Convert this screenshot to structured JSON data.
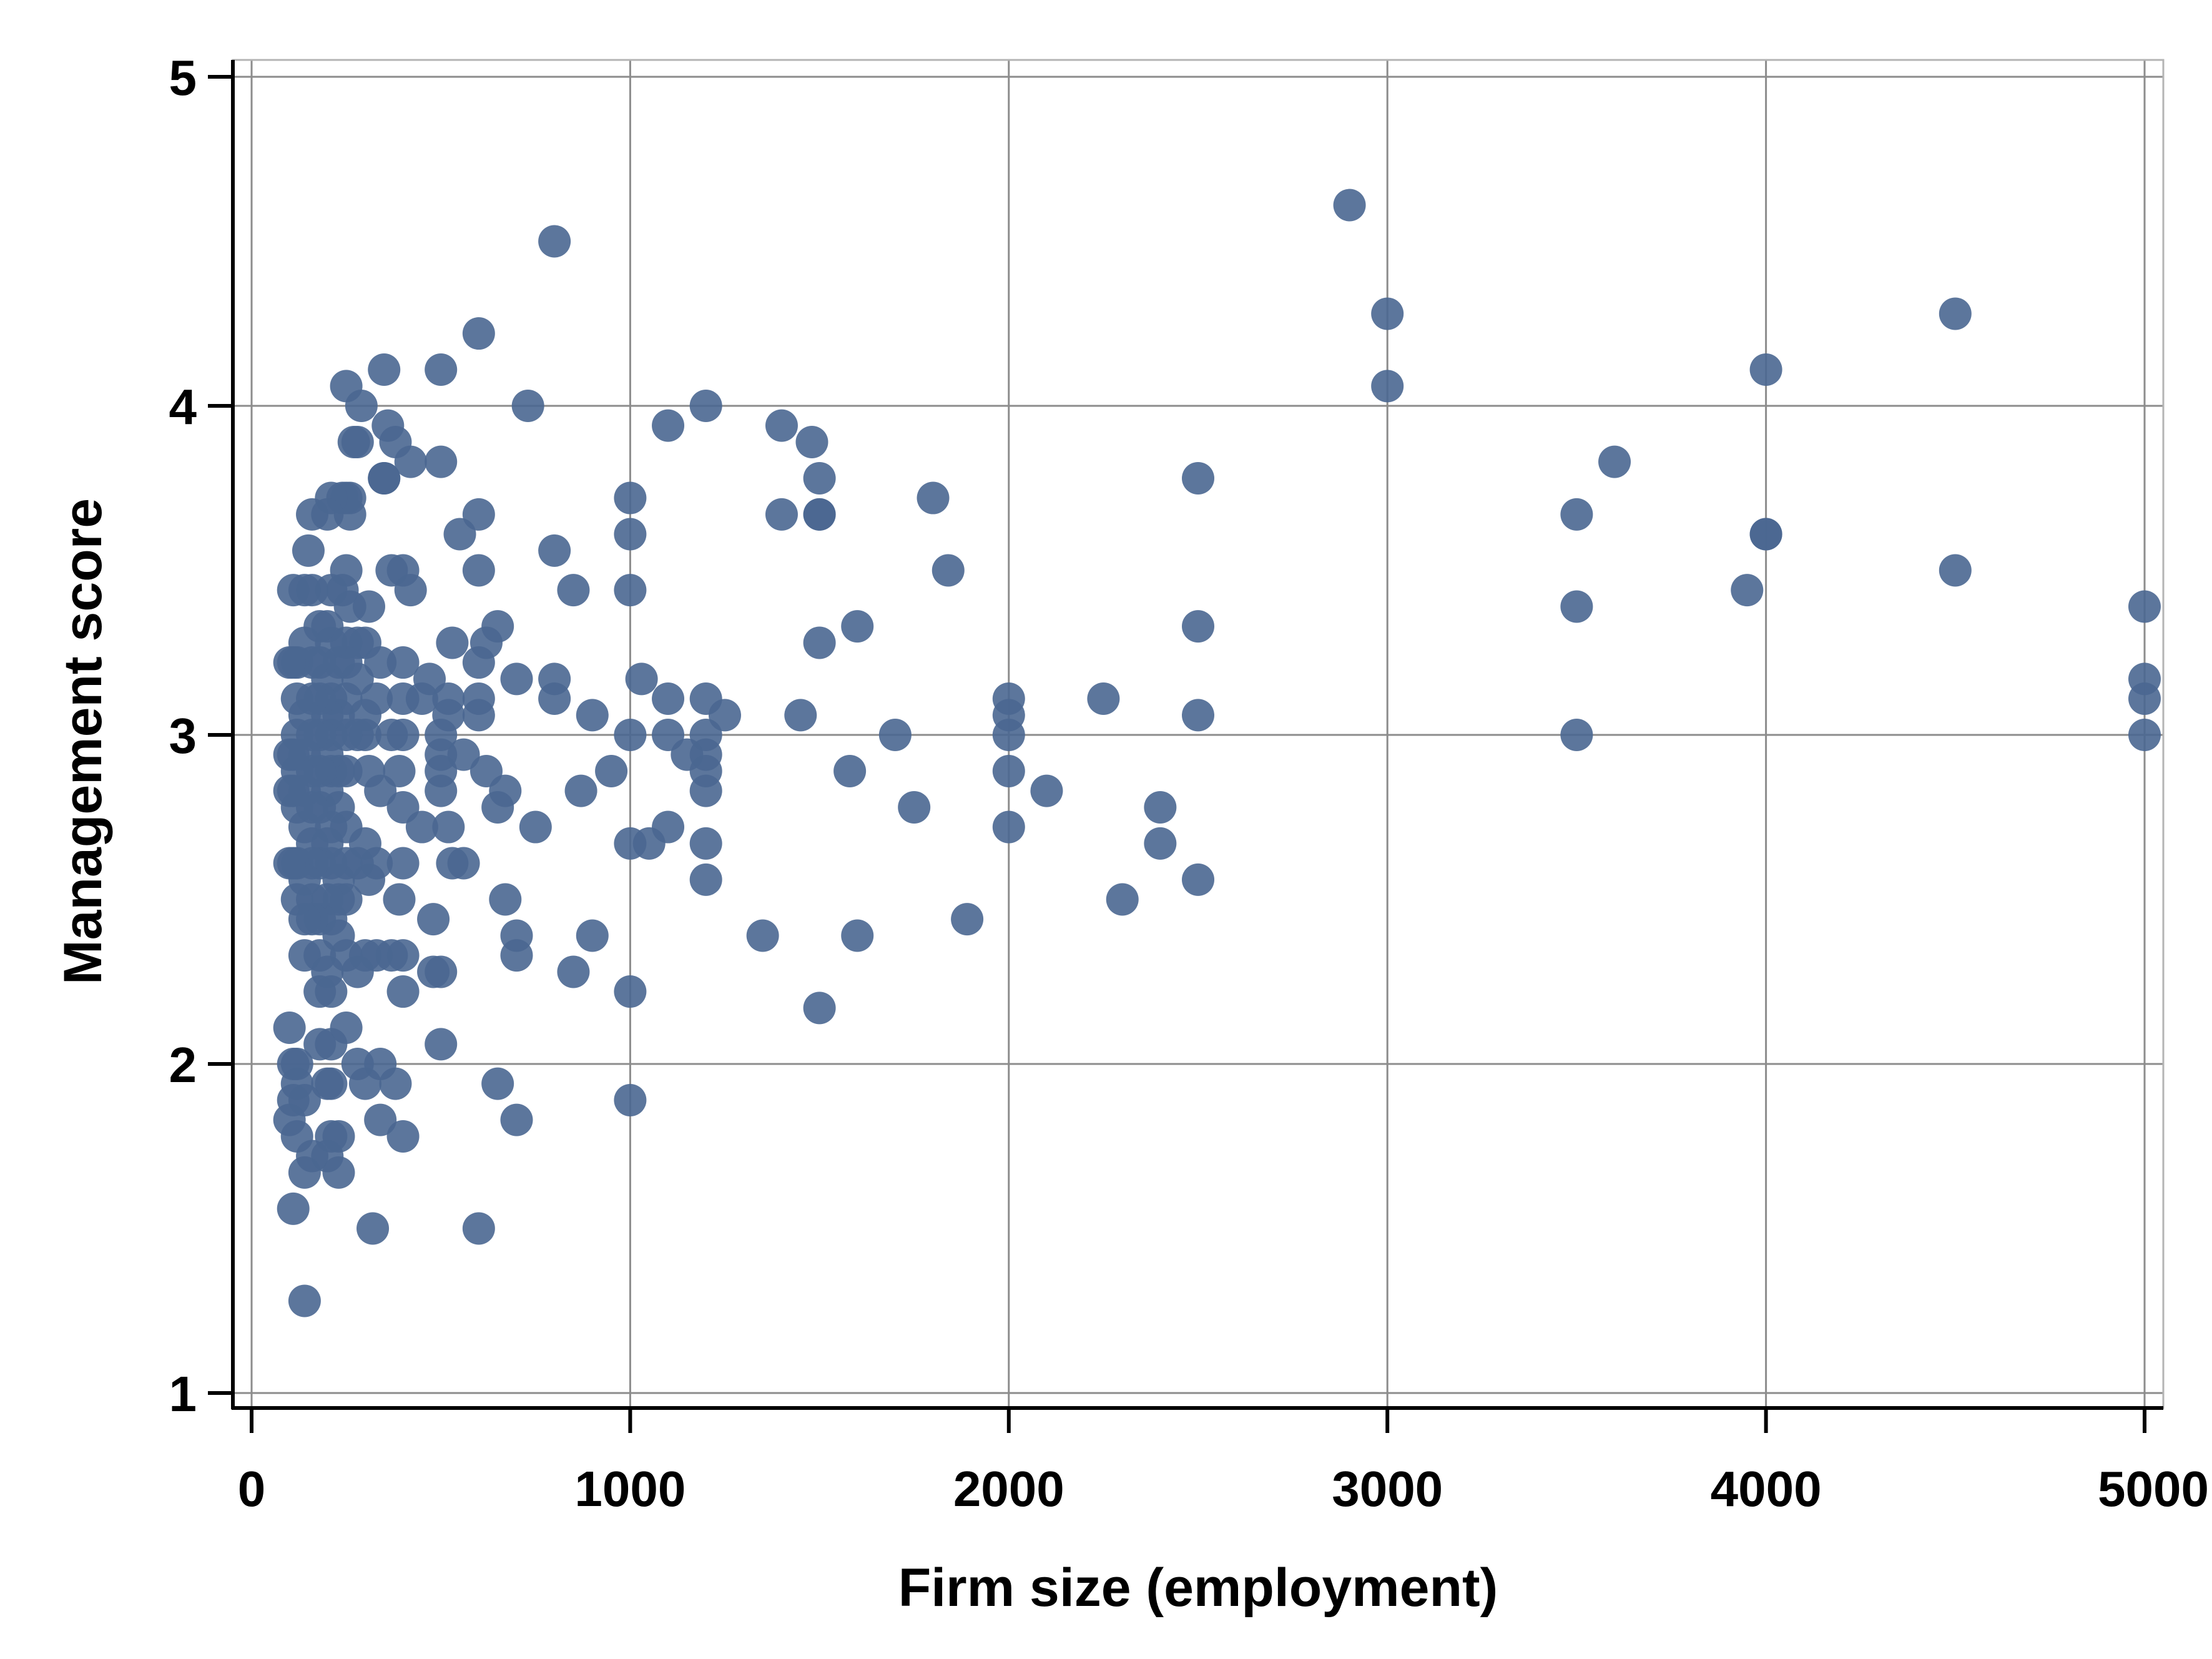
{
  "chart_data": {
    "type": "scatter",
    "title": "",
    "xlabel": "Firm size (employment)",
    "ylabel": "Management score",
    "xlim": [
      0,
      5000
    ],
    "ylim": [
      1,
      5
    ],
    "xticks": [
      0,
      1000,
      2000,
      3000,
      4000,
      5000
    ],
    "yticks": [
      1,
      2,
      3,
      4,
      5
    ],
    "xtick_labels": [
      "0",
      "1000",
      "2000",
      "3000",
      "4000",
      "5000"
    ],
    "ytick_labels": [
      "1",
      "2",
      "3",
      "4",
      "5"
    ],
    "grid": true,
    "legend": "none",
    "colors": {
      "point": "#4a6791",
      "grid": "#8c8c8c",
      "axis": "#000000",
      "frame": "#b4b4b4"
    },
    "series": [
      {
        "points": [
          [
            2900,
            4.61
          ],
          [
            3000,
            4.28
          ],
          [
            3000,
            4.06
          ],
          [
            4500,
            4.28
          ],
          [
            4000,
            4.11
          ],
          [
            3600,
            3.83
          ],
          [
            3500,
            3.67
          ],
          [
            4000,
            3.61
          ],
          [
            4000,
            3.61
          ],
          [
            3950,
            3.44
          ],
          [
            4500,
            3.5
          ],
          [
            3500,
            3.39
          ],
          [
            3500,
            3.0
          ],
          [
            5000,
            3.39
          ],
          [
            5000,
            3.17
          ],
          [
            5000,
            3.11
          ],
          [
            5000,
            3.0
          ],
          [
            2500,
            3.78
          ],
          [
            2500,
            3.33
          ],
          [
            2500,
            3.06
          ],
          [
            2500,
            2.56
          ],
          [
            2250,
            3.11
          ],
          [
            2100,
            2.83
          ],
          [
            2300,
            2.5
          ],
          [
            2400,
            2.78
          ],
          [
            2400,
            2.67
          ],
          [
            2000,
            3.11
          ],
          [
            2000,
            3.06
          ],
          [
            2000,
            3.0
          ],
          [
            2000,
            2.89
          ],
          [
            2000,
            2.72
          ],
          [
            1800,
            3.72
          ],
          [
            1840,
            3.5
          ],
          [
            1890,
            2.44
          ],
          [
            1750,
            2.78
          ],
          [
            1700,
            3.0
          ],
          [
            1600,
            3.33
          ],
          [
            1580,
            2.89
          ],
          [
            1600,
            2.39
          ],
          [
            1500,
            3.28
          ],
          [
            1500,
            3.67
          ],
          [
            1500,
            3.67
          ],
          [
            1500,
            3.78
          ],
          [
            1480,
            3.89
          ],
          [
            1400,
            3.94
          ],
          [
            1400,
            3.67
          ],
          [
            1450,
            3.06
          ],
          [
            1350,
            2.39
          ],
          [
            1500,
            2.17
          ],
          [
            1200,
            4.0
          ],
          [
            1100,
            3.94
          ],
          [
            1250,
            3.06
          ],
          [
            1200,
            3.11
          ],
          [
            1200,
            3.0
          ],
          [
            1200,
            2.94
          ],
          [
            1200,
            2.89
          ],
          [
            1200,
            2.83
          ],
          [
            1200,
            2.67
          ],
          [
            1200,
            2.56
          ],
          [
            1100,
            3.11
          ],
          [
            1150,
            2.94
          ],
          [
            1100,
            3.0
          ],
          [
            1100,
            2.72
          ],
          [
            1050,
            2.67
          ],
          [
            1030,
            3.17
          ],
          [
            1000,
            3.72
          ],
          [
            1000,
            3.61
          ],
          [
            1000,
            3.44
          ],
          [
            1000,
            3.0
          ],
          [
            1000,
            2.67
          ],
          [
            1000,
            2.22
          ],
          [
            1000,
            1.89
          ],
          [
            950,
            2.89
          ],
          [
            900,
            3.06
          ],
          [
            900,
            2.39
          ],
          [
            870,
            2.83
          ],
          [
            850,
            3.44
          ],
          [
            850,
            2.28
          ],
          [
            800,
            4.5
          ],
          [
            800,
            3.56
          ],
          [
            800,
            3.17
          ],
          [
            800,
            3.11
          ],
          [
            730,
            4.0
          ],
          [
            750,
            2.72
          ],
          [
            700,
            3.17
          ],
          [
            700,
            2.39
          ],
          [
            700,
            2.33
          ],
          [
            700,
            1.83
          ],
          [
            670,
            2.5
          ],
          [
            670,
            2.83
          ],
          [
            650,
            3.33
          ],
          [
            650,
            2.78
          ],
          [
            650,
            1.94
          ],
          [
            600,
            4.22
          ],
          [
            600,
            3.67
          ],
          [
            600,
            3.5
          ],
          [
            620,
            3.28
          ],
          [
            600,
            3.22
          ],
          [
            600,
            3.11
          ],
          [
            600,
            3.06
          ],
          [
            620,
            2.89
          ],
          [
            600,
            1.5
          ],
          [
            550,
            3.61
          ],
          [
            530,
            3.28
          ],
          [
            520,
            3.11
          ],
          [
            520,
            3.06
          ],
          [
            500,
            3.0
          ],
          [
            500,
            2.94
          ],
          [
            560,
            2.94
          ],
          [
            500,
            2.89
          ],
          [
            500,
            2.83
          ],
          [
            520,
            2.72
          ],
          [
            530,
            2.61
          ],
          [
            560,
            2.61
          ],
          [
            500,
            2.28
          ],
          [
            480,
            2.28
          ],
          [
            500,
            2.06
          ],
          [
            480,
            2.44
          ],
          [
            500,
            4.11
          ],
          [
            500,
            3.83
          ],
          [
            470,
            3.17
          ],
          [
            450,
            3.11
          ],
          [
            450,
            2.72
          ],
          [
            420,
            3.83
          ],
          [
            420,
            3.44
          ],
          [
            400,
            3.5
          ],
          [
            400,
            3.22
          ],
          [
            400,
            3.11
          ],
          [
            400,
            3.0
          ],
          [
            390,
            2.89
          ],
          [
            400,
            2.78
          ],
          [
            400,
            2.61
          ],
          [
            390,
            2.5
          ],
          [
            400,
            2.33
          ],
          [
            400,
            2.22
          ],
          [
            400,
            1.78
          ],
          [
            380,
            3.89
          ],
          [
            370,
            3.5
          ],
          [
            370,
            3.0
          ],
          [
            370,
            2.33
          ],
          [
            380,
            1.94
          ],
          [
            350,
            4.11
          ],
          [
            360,
            3.94
          ],
          [
            350,
            3.78
          ],
          [
            350,
            3.78
          ],
          [
            340,
            3.22
          ],
          [
            330,
            3.11
          ],
          [
            340,
            2.83
          ],
          [
            330,
            2.61
          ],
          [
            330,
            2.33
          ],
          [
            340,
            2.0
          ],
          [
            340,
            1.83
          ],
          [
            310,
            3.39
          ],
          [
            300,
            3.28
          ],
          [
            300,
            3.06
          ],
          [
            300,
            3.0
          ],
          [
            310,
            2.89
          ],
          [
            300,
            2.67
          ],
          [
            310,
            2.56
          ],
          [
            300,
            2.33
          ],
          [
            300,
            1.94
          ],
          [
            320,
            1.5
          ],
          [
            290,
            4.0
          ],
          [
            280,
            3.89
          ],
          [
            270,
            3.89
          ],
          [
            280,
            3.28
          ],
          [
            280,
            3.17
          ],
          [
            280,
            3.0
          ],
          [
            280,
            2.61
          ],
          [
            280,
            2.28
          ],
          [
            280,
            2.0
          ],
          [
            260,
            3.72
          ],
          [
            250,
            3.72
          ],
          [
            260,
            3.67
          ],
          [
            250,
            3.5
          ],
          [
            260,
            3.39
          ],
          [
            250,
            3.28
          ],
          [
            250,
            3.22
          ],
          [
            250,
            3.11
          ],
          [
            250,
            3.0
          ],
          [
            250,
            2.89
          ],
          [
            250,
            2.72
          ],
          [
            250,
            2.61
          ],
          [
            250,
            2.5
          ],
          [
            250,
            2.33
          ],
          [
            250,
            2.11
          ],
          [
            250,
            4.06
          ],
          [
            240,
            3.72
          ],
          [
            240,
            3.44
          ],
          [
            230,
            3.22
          ],
          [
            230,
            3.06
          ],
          [
            230,
            2.89
          ],
          [
            230,
            2.78
          ],
          [
            230,
            2.56
          ],
          [
            230,
            2.5
          ],
          [
            230,
            2.39
          ],
          [
            230,
            1.78
          ],
          [
            230,
            1.67
          ],
          [
            210,
            3.72
          ],
          [
            210,
            3.44
          ],
          [
            210,
            3.28
          ],
          [
            210,
            3.11
          ],
          [
            210,
            3.0
          ],
          [
            210,
            2.89
          ],
          [
            210,
            2.72
          ],
          [
            210,
            2.61
          ],
          [
            210,
            2.44
          ],
          [
            210,
            2.22
          ],
          [
            210,
            2.06
          ],
          [
            210,
            1.94
          ],
          [
            210,
            1.78
          ],
          [
            200,
            3.67
          ],
          [
            200,
            3.33
          ],
          [
            200,
            3.17
          ],
          [
            200,
            3.06
          ],
          [
            200,
            2.94
          ],
          [
            200,
            2.83
          ],
          [
            200,
            2.67
          ],
          [
            200,
            2.5
          ],
          [
            200,
            2.28
          ],
          [
            200,
            1.94
          ],
          [
            200,
            1.72
          ],
          [
            180,
            3.33
          ],
          [
            180,
            3.22
          ],
          [
            180,
            3.11
          ],
          [
            180,
            3.0
          ],
          [
            180,
            2.89
          ],
          [
            180,
            2.78
          ],
          [
            180,
            2.61
          ],
          [
            180,
            2.44
          ],
          [
            180,
            2.33
          ],
          [
            180,
            2.22
          ],
          [
            180,
            2.06
          ],
          [
            160,
            3.67
          ],
          [
            150,
            3.56
          ],
          [
            160,
            3.44
          ],
          [
            160,
            3.22
          ],
          [
            160,
            3.11
          ],
          [
            160,
            3.0
          ],
          [
            160,
            2.89
          ],
          [
            160,
            2.78
          ],
          [
            160,
            2.67
          ],
          [
            160,
            2.61
          ],
          [
            160,
            2.5
          ],
          [
            160,
            2.44
          ],
          [
            160,
            1.72
          ],
          [
            140,
            3.44
          ],
          [
            140,
            3.28
          ],
          [
            140,
            3.06
          ],
          [
            140,
            2.94
          ],
          [
            140,
            2.83
          ],
          [
            140,
            2.72
          ],
          [
            140,
            2.56
          ],
          [
            140,
            2.44
          ],
          [
            140,
            2.33
          ],
          [
            140,
            1.89
          ],
          [
            140,
            1.67
          ],
          [
            140,
            1.28
          ],
          [
            120,
            3.22
          ],
          [
            120,
            3.11
          ],
          [
            120,
            3.0
          ],
          [
            120,
            2.89
          ],
          [
            120,
            2.78
          ],
          [
            120,
            2.61
          ],
          [
            120,
            2.5
          ],
          [
            120,
            2.0
          ],
          [
            120,
            1.94
          ],
          [
            120,
            1.78
          ],
          [
            110,
            3.44
          ],
          [
            110,
            3.22
          ],
          [
            110,
            2.94
          ],
          [
            110,
            2.83
          ],
          [
            110,
            2.61
          ],
          [
            110,
            2.0
          ],
          [
            110,
            1.89
          ],
          [
            110,
            1.56
          ],
          [
            100,
            3.22
          ],
          [
            100,
            2.94
          ],
          [
            100,
            2.83
          ],
          [
            100,
            2.61
          ],
          [
            100,
            2.11
          ],
          [
            100,
            1.83
          ]
        ]
      }
    ]
  }
}
